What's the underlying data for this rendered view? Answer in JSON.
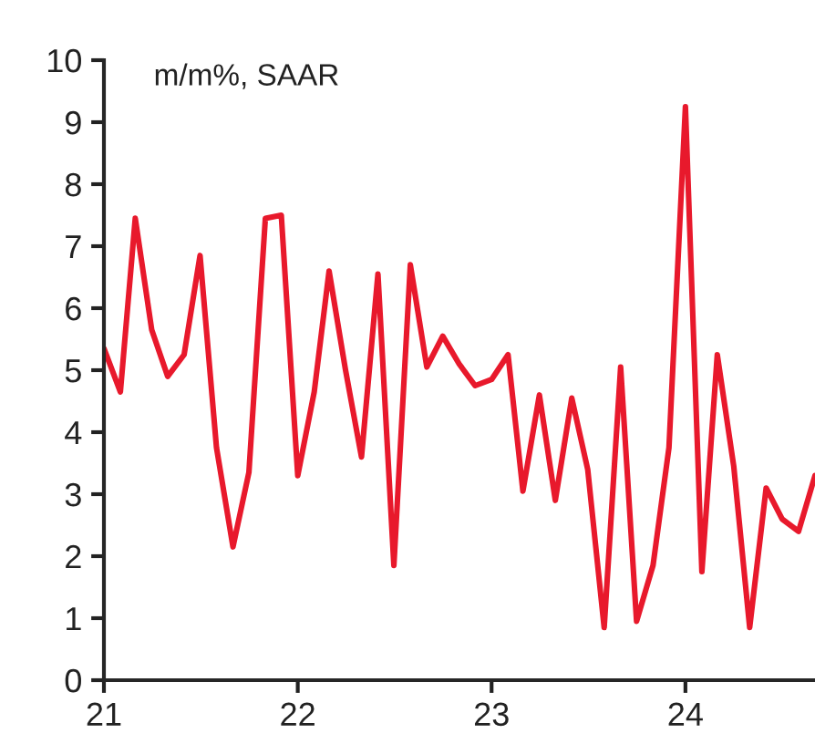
{
  "chart_data": {
    "type": "line",
    "annotations": [
      "m/m%, SAAR"
    ],
    "x": [
      "2021-01",
      "2021-02",
      "2021-03",
      "2021-04",
      "2021-05",
      "2021-06",
      "2021-07",
      "2021-08",
      "2021-09",
      "2021-10",
      "2021-11",
      "2021-12",
      "2022-01",
      "2022-02",
      "2022-03",
      "2022-04",
      "2022-05",
      "2022-06",
      "2022-07",
      "2022-08",
      "2022-09",
      "2022-10",
      "2022-11",
      "2022-12",
      "2023-01",
      "2023-02",
      "2023-03",
      "2023-04",
      "2023-05",
      "2023-06",
      "2023-07",
      "2023-08",
      "2023-09",
      "2023-10",
      "2023-11",
      "2023-12",
      "2024-01",
      "2024-02",
      "2024-03",
      "2024-04",
      "2024-05",
      "2024-06",
      "2024-07",
      "2024-08",
      "2024-09"
    ],
    "series": [
      {
        "color": "#e8192c",
        "values": [
          5.35,
          4.65,
          7.45,
          5.65,
          4.9,
          5.25,
          6.85,
          3.75,
          2.15,
          3.35,
          7.45,
          7.5,
          3.3,
          4.65,
          6.6,
          5.0,
          3.6,
          6.55,
          1.85,
          6.7,
          5.05,
          5.55,
          5.1,
          4.75,
          4.85,
          5.25,
          3.05,
          4.6,
          2.9,
          4.55,
          3.4,
          0.85,
          5.05,
          0.95,
          1.85,
          3.75,
          9.25,
          1.75,
          5.25,
          3.45,
          0.85,
          3.1,
          2.6,
          2.4,
          3.3
        ]
      }
    ],
    "xlim": [
      "2021-01",
      "2024-09"
    ],
    "xticks": [
      {
        "value": "2021-01",
        "label": "21"
      },
      {
        "value": "2022-01",
        "label": "22"
      },
      {
        "value": "2023-01",
        "label": "23"
      },
      {
        "value": "2024-01",
        "label": "24"
      }
    ],
    "ylim": [
      0,
      10
    ],
    "yticks": [
      0,
      1,
      2,
      3,
      4,
      5,
      6,
      7,
      8,
      9,
      10
    ],
    "grid": false,
    "legend": false,
    "marker": "none",
    "line_style": "solid"
  }
}
